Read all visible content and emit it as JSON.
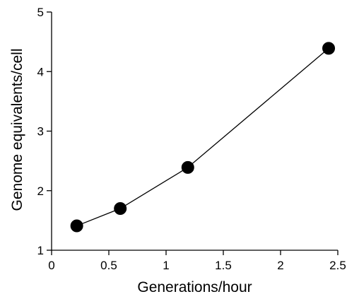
{
  "chart_data": {
    "type": "line",
    "xlabel": "Generations/hour",
    "ylabel": "Genome equivalents/cell",
    "xlim": [
      0,
      2.5
    ],
    "ylim": [
      1,
      5
    ],
    "xticks": [
      0,
      0.5,
      1,
      1.5,
      2,
      2.5
    ],
    "xtick_labels": [
      "0",
      "0.5",
      "1",
      "1.5",
      "2",
      "2.5"
    ],
    "yticks": [
      1,
      2,
      3,
      4,
      5
    ],
    "ytick_labels": [
      "1",
      "2",
      "3",
      "4",
      "5"
    ],
    "grid": false,
    "series": [
      {
        "x": [
          0.22,
          0.6,
          1.19,
          2.42
        ],
        "y": [
          1.41,
          1.7,
          2.39,
          4.39
        ]
      }
    ],
    "colors": {
      "line": "#000000",
      "marker": "#000000"
    }
  }
}
